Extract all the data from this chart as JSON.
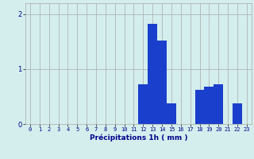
{
  "hours": [
    0,
    1,
    2,
    3,
    4,
    5,
    6,
    7,
    8,
    9,
    10,
    11,
    12,
    13,
    14,
    15,
    16,
    17,
    18,
    19,
    20,
    21,
    22,
    23
  ],
  "values": [
    0,
    0,
    0,
    0,
    0,
    0,
    0,
    0,
    0,
    0,
    0,
    0,
    0.72,
    1.82,
    1.52,
    0.38,
    0,
    0,
    0.62,
    0.68,
    0.72,
    0,
    0.38,
    0
  ],
  "bar_color": "#1a3fcc",
  "bg_color": "#d4eeee",
  "grid_color": "#aaaaaa",
  "xlabel": "Précipitations 1h ( mm )",
  "xlabel_color": "#00008b",
  "tick_color": "#00008b",
  "ylim": [
    0,
    2.2
  ],
  "yticks": [
    0,
    1,
    2
  ],
  "xlim": [
    -0.5,
    23.5
  ],
  "tick_fontsize": 5.0,
  "xlabel_fontsize": 6.5,
  "ytick_fontsize": 6.0
}
